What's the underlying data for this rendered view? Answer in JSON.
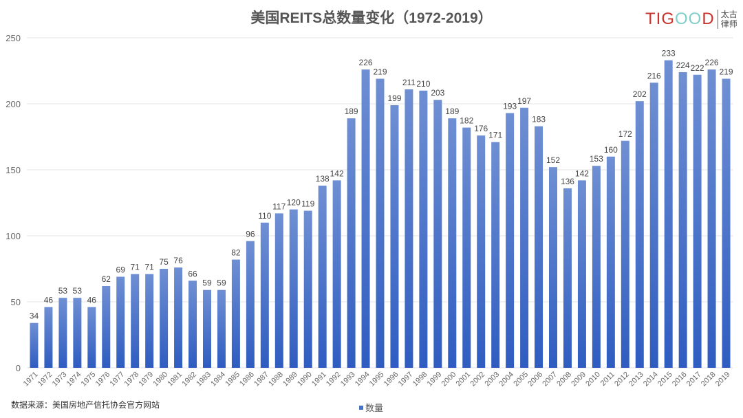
{
  "chart_data": {
    "type": "bar",
    "title": "美国REITS总数量变化（1972-2019）",
    "categories": [
      "1971",
      "1972",
      "1973",
      "1974",
      "1975",
      "1976",
      "1977",
      "1978",
      "1979",
      "1980",
      "1981",
      "1982",
      "1983",
      "1984",
      "1985",
      "1986",
      "1987",
      "1988",
      "1989",
      "1990",
      "1991",
      "1992",
      "1993",
      "1994",
      "1995",
      "1996",
      "1997",
      "1998",
      "1999",
      "2000",
      "2001",
      "2002",
      "2003",
      "2004",
      "2005",
      "2006",
      "2007",
      "2008",
      "2009",
      "2010",
      "2011",
      "2012",
      "2013",
      "2014",
      "2015",
      "2016",
      "2017",
      "2018",
      "2019"
    ],
    "series": [
      {
        "name": "数量",
        "values": [
          34,
          46,
          53,
          53,
          46,
          62,
          69,
          71,
          71,
          75,
          76,
          66,
          59,
          59,
          82,
          96,
          110,
          117,
          120,
          119,
          138,
          142,
          189,
          226,
          219,
          199,
          211,
          210,
          203,
          189,
          182,
          176,
          171,
          193,
          197,
          183,
          152,
          136,
          142,
          153,
          160,
          172,
          202,
          216,
          233,
          224,
          222,
          226,
          219
        ],
        "color": "#4472c4"
      }
    ],
    "ylim": [
      0,
      250
    ],
    "yticks": [
      0,
      50,
      100,
      150,
      200,
      250
    ],
    "grid": true,
    "data_labels": true,
    "legend_position": "bottom"
  },
  "source_note": "数据来源：美国房地产信托协会官方网站",
  "logo": {
    "brand": "TIGOOD",
    "cn_line1": "太古",
    "cn_line2": "律师"
  }
}
